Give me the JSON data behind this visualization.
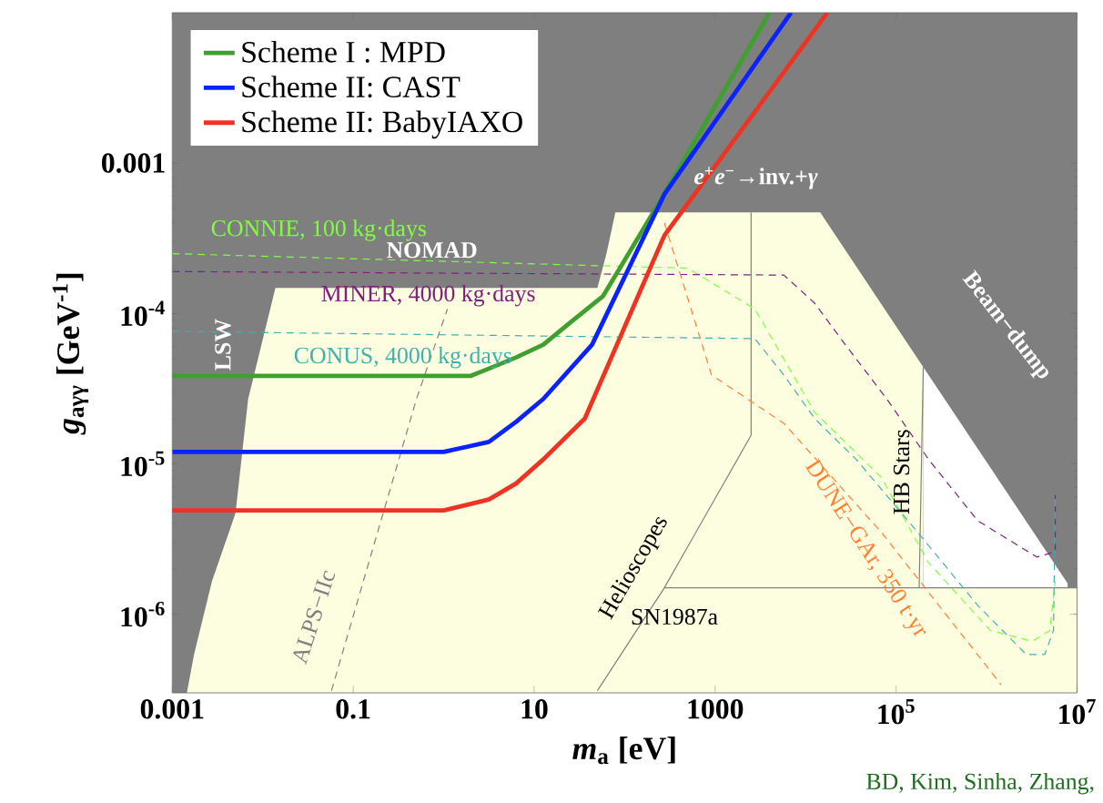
{
  "chart_data": {
    "type": "line",
    "xlabel": "*m*$_{a}$ [eV]",
    "ylabel": "*g*$_{aγγ}$ [GeV$^{-1}$]",
    "log": "xy",
    "xlim": [
      0.001,
      10000000
    ],
    "ylim": [
      3e-07,
      0.01
    ],
    "xticks": [
      0.001,
      0.1,
      10,
      1000,
      {
        "value": 100000,
        "label": "10$^{5}$"
      },
      {
        "value": 10000000,
        "label": "10$^{7}$"
      }
    ],
    "yticks": [
      {
        "value": 1e-06,
        "label": "10$^{-6}$"
      },
      {
        "value": 1e-05,
        "label": "10$^{-5}$"
      },
      {
        "value": 0.0001,
        "label": "10$^{-4}$"
      },
      0.001
    ],
    "legend": "top left",
    "bands": [
      {
        "axis": "x",
        "from": 0.001,
        "to": 10000000,
        "color": "#7f7f7f"
      }
    ],
    "series": [
      {
        "type": "area",
        "color": "#ffffff",
        "x": [
          200000,
          7900000
        ],
        "values": [
          4.4e-05,
          1.6e-06
        ]
      },
      {
        "type": "area",
        "color": "#fdfde0",
        "x": [
          0.00145,
          0.00174,
          0.00275,
          0.005,
          0.0069,
          0.0138,
          50,
          63,
          79,
          14500,
          200000,
          200000,
          10000000
        ],
        "values": [
          3e-07,
          5.4e-07,
          1.66e-06,
          4.7e-06,
          2.7e-05,
          0.000148,
          0.000148,
          0.00025,
          0.00047,
          0.00047,
          4.4e-05,
          1.5e-06,
          1.5e-06
        ]
      },
      {
        "color": "#808080",
        "line_style": "solid",
        "x": [
          50,
          275,
          2500,
          2500
        ],
        "values": [
          3.1e-07,
          1.5e-06,
          1.55e-05,
          0.00047
        ]
      },
      {
        "color": "#808080",
        "line_style": "solid",
        "x": [
          275,
          10000000
        ],
        "values": [
          1.5e-06,
          1.5e-06
        ]
      },
      {
        "color": "#808080",
        "line_style": "solid",
        "x": [
          200000,
          180000
        ],
        "values": [
          4.4e-05,
          1.5e-06
        ]
      },
      {
        "color": "#808080",
        "line_style": "dashed",
        "x": [
          0.0575,
          0.5,
          1.1
        ],
        "values": [
          3.1e-07,
          2.7e-05,
          0.000107
        ]
      },
      {
        "color": "#80ff40",
        "line_style": "dashed",
        "x": [
          0.001,
          500,
          2750,
          12600,
          69000,
          229000,
          1100000,
          3200000,
          5000000,
          5750000
        ],
        "values": [
          0.00025,
          0.0002,
          0.000107,
          2.2e-05,
          8.1e-06,
          2.2e-06,
          7.8e-07,
          6.6e-07,
          7.8e-07,
          1.66e-06
        ]
      },
      {
        "color": "#7f207f",
        "line_style": "dashed",
        "x": [
          0.001,
          5750,
          12600,
          27500,
          79000,
          229000,
          794000,
          3600000,
          5750000,
          5750000
        ],
        "values": [
          0.00019,
          0.00018,
          0.000117,
          6.2e-05,
          2.7e-05,
          1.07e-05,
          4.2e-06,
          2.4e-06,
          2.6e-06,
          6.2e-06
        ]
      },
      {
        "color": "#40b0b0",
        "line_style": "dashed",
        "x": [
          0.001,
          2750,
          5750,
          12600,
          36300,
          174000,
          794000,
          2750000,
          4400000,
          5500000,
          5750000
        ],
        "values": [
          7.6e-05,
          6.8e-05,
          3.9e-05,
          2e-05,
          1.07e-05,
          3.5e-06,
          1.15e-06,
          5.4e-07,
          5.4e-07,
          7.8e-07,
          6.2e-06
        ]
      },
      {
        "color": "#ff8030",
        "line_style": "dashed",
        "x": [
          275,
          912,
          5750,
          69000,
          1450000
        ],
        "values": [
          0.0004,
          3.9e-05,
          1.86e-05,
          3.5e-06,
          3.4e-07
        ]
      },
      {
        "name": "Scheme I : MPD",
        "color": "#3f9f2f",
        "line_style": "solid",
        "x": [
          0.001,
          2,
          3.16,
          6.3,
          12.6,
          25,
          57.5,
          115,
          229,
          3981
        ],
        "values": [
          3.85e-05,
          3.85e-05,
          4.3e-05,
          5.1e-05,
          6.2e-05,
          8.7e-05,
          0.00013,
          0.00026,
          0.00052,
          0.01
        ]
      },
      {
        "name": "Scheme II: CAST",
        "color": "#0a22ff",
        "line_style": "solid",
        "x": [
          0.001,
          1,
          3.16,
          6.3,
          12.6,
          43.6,
          275,
          6900
        ],
        "values": [
          1.2e-05,
          1.2e-05,
          1.4e-05,
          1.9e-05,
          2.7e-05,
          6.2e-05,
          0.00062,
          0.01
        ]
      },
      {
        "name": "Scheme II: BabyIAXO",
        "color": "#ee3322",
        "line_style": "solid",
        "x": [
          0.001,
          1,
          3.16,
          6.3,
          12.6,
          36.3,
          275,
          17400
        ],
        "values": [
          4.9e-06,
          4.9e-06,
          5.8e-06,
          7.4e-06,
          1.07e-05,
          2e-05,
          0.00033,
          0.01
        ]
      }
    ],
    "annotations": [
      "CONNIE, 100 kg·days",
      "NOMAD",
      "MINER, 4000 kg·days",
      "CONUS, 4000 kg·days",
      "LSW",
      "*e*$^{+}$*e*$^{−}$→inv.+*γ*",
      "Beam−dump",
      "HB Stars",
      "Helioscopes",
      "SN1987a",
      "ALPS−IIc",
      "DUNE−GAr, 350 t·yr",
      "BD, Kim, Sinha, Zhang,"
    ]
  }
}
